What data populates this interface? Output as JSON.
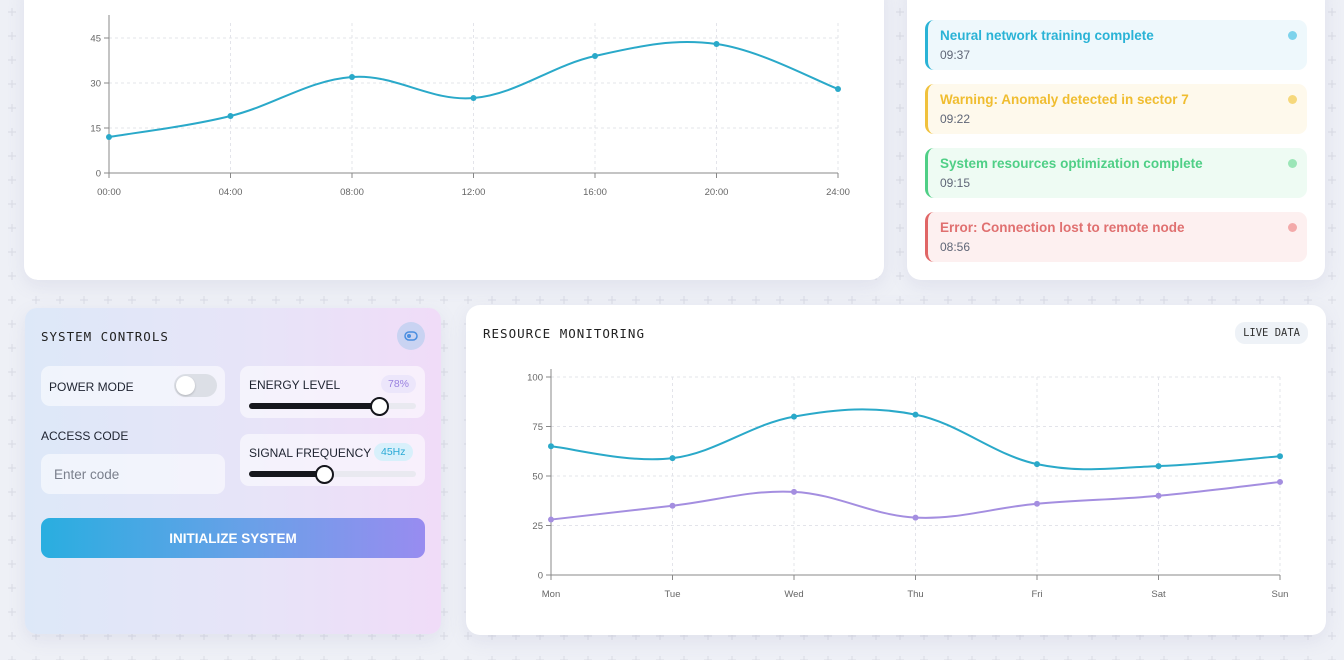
{
  "colors": {
    "accent_cyan": "#2aa9c9",
    "accent_purple": "#a48ee0",
    "info": "#2ab3d6",
    "warning": "#f0c13c",
    "success": "#4fcf86",
    "error": "#e06666"
  },
  "activity_chart": {
    "chart_data": {
      "type": "line",
      "x": [
        "00:00",
        "04:00",
        "08:00",
        "12:00",
        "16:00",
        "20:00",
        "24:00"
      ],
      "series": [
        {
          "values": [
            12,
            19,
            32,
            25,
            39,
            43,
            28
          ]
        }
      ],
      "ylim": [
        0,
        50
      ],
      "yticks": [
        0,
        15,
        30,
        45
      ],
      "grid": true
    }
  },
  "alerts": [
    {
      "message": "Neural network training complete",
      "time": "09:37",
      "level": "info"
    },
    {
      "message": "Warning: Anomaly detected in sector 7",
      "time": "09:22",
      "level": "warning"
    },
    {
      "message": "System resources optimization complete",
      "time": "09:15",
      "level": "success"
    },
    {
      "message": "Error: Connection lost to remote node",
      "time": "08:56",
      "level": "error"
    }
  ],
  "controls": {
    "title": "SYSTEM CONTROLS",
    "toggle_icon": "toggle-icon",
    "power_mode_label": "POWER MODE",
    "power_mode_on": false,
    "energy_label": "ENERGY LEVEL",
    "energy_value": "78%",
    "energy_fraction": 0.78,
    "signal_label": "SIGNAL FREQUENCY",
    "signal_value": "45Hz",
    "signal_fraction": 0.45,
    "access_code_label": "ACCESS CODE",
    "access_code_placeholder": "Enter code",
    "initialize_label": "INITIALIZE SYSTEM"
  },
  "resource": {
    "title": "RESOURCE MONITORING",
    "badge": "LIVE DATA",
    "chart_data": {
      "type": "line",
      "x": [
        "Mon",
        "Tue",
        "Wed",
        "Thu",
        "Fri",
        "Sat",
        "Sun"
      ],
      "series": [
        {
          "values": [
            65,
            59,
            80,
            81,
            56,
            55,
            60
          ],
          "color": "#2aa9c9"
        },
        {
          "values": [
            28,
            35,
            42,
            29,
            36,
            40,
            47
          ],
          "color": "#a48ee0"
        }
      ],
      "ylim": [
        0,
        100
      ],
      "yticks": [
        0,
        25,
        50,
        75,
        100
      ],
      "grid": true
    }
  }
}
